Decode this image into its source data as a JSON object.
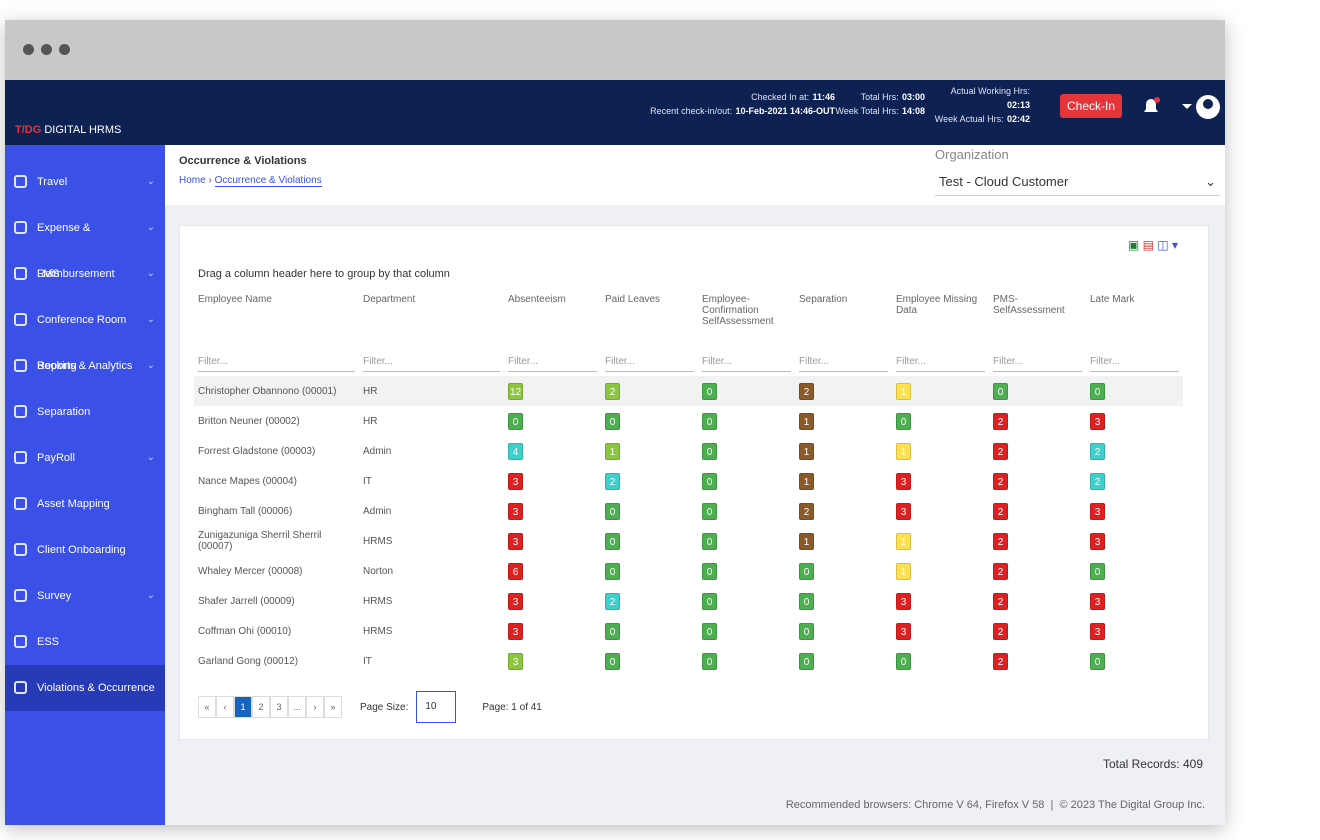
{
  "header": {
    "checked_in_label": "Checked In at:",
    "checked_in_value": "11:46",
    "recent_label": "Recent check-in/out:",
    "recent_value": "10-Feb-2021 14:46-OUT",
    "total_hrs_label": "Total Hrs:",
    "total_hrs_value": "03:00",
    "week_total_label": "Week Total Hrs:",
    "week_total_value": "14:08",
    "actual_working_label": "Actual Working Hrs:",
    "actual_working_value": "02:13",
    "week_actual_label": "Week Actual Hrs:",
    "week_actual_value": "02:42",
    "checkin_button": "Check-In"
  },
  "brand": {
    "logo": "T/DG",
    "name": "DIGITAL HRMS"
  },
  "organization": {
    "label": "Organization",
    "value": "Test - Cloud Customer"
  },
  "sidebar": {
    "items": [
      "Travel",
      "Expense & Reimbursement",
      "LMS",
      "Conference Room Booking",
      "Reports & Analytics",
      "Separation",
      "PayRoll",
      "Asset Mapping",
      "Client Onboarding",
      "Survey",
      "ESS",
      "Violations & Occurrence"
    ]
  },
  "page": {
    "title": "Occurrence & Violations",
    "breadcrumb": [
      "Home",
      "Occurrence & Violations"
    ]
  },
  "grid": {
    "group_hint": "Drag a column header here to group by that column",
    "columns": [
      "Employee Name",
      "Department",
      "Absenteeism",
      "Paid Leaves",
      "Employee-Confirmation SelfAssessment",
      "Separation",
      "Employee Missing Data",
      "PMS-SelfAssessment",
      "Late Mark"
    ],
    "filter_placeholder": "Filter...",
    "rows": [
      {
        "name": "Christopher Obannono (00001)",
        "department": "HR",
        "counts": [
          "12",
          "2",
          "0",
          "2",
          "1",
          "0",
          "0"
        ],
        "colors": [
          "#8cc63f",
          "#8cc63f",
          "#4caf50",
          "#8b5a2b",
          "#ffe14d",
          "#4caf50",
          "#4caf50"
        ]
      },
      {
        "name": "Britton Neuner (00002)",
        "department": "HR",
        "counts": [
          "0",
          "0",
          "0",
          "1",
          "0",
          "2",
          "3"
        ],
        "colors": [
          "#4caf50",
          "#4caf50",
          "#4caf50",
          "#8b5a2b",
          "#4caf50",
          "#e02020",
          "#e02020"
        ]
      },
      {
        "name": "Forrest Gladstone (00003)",
        "department": "Admin",
        "counts": [
          "4",
          "1",
          "0",
          "1",
          "1",
          "2",
          "2"
        ],
        "colors": [
          "#3ed1cc",
          "#8cc63f",
          "#4caf50",
          "#8b5a2b",
          "#ffe14d",
          "#e02020",
          "#3ed1cc"
        ]
      },
      {
        "name": "Nance Mapes (00004)",
        "department": "IT",
        "counts": [
          "3",
          "2",
          "0",
          "1",
          "3",
          "2",
          "2"
        ],
        "colors": [
          "#e02020",
          "#3ed1cc",
          "#4caf50",
          "#8b5a2b",
          "#e02020",
          "#e02020",
          "#3ed1cc"
        ]
      },
      {
        "name": "Bingham Tall (00006)",
        "department": "Admin",
        "counts": [
          "3",
          "0",
          "0",
          "2",
          "3",
          "2",
          "3"
        ],
        "colors": [
          "#e02020",
          "#4caf50",
          "#4caf50",
          "#8b5a2b",
          "#e02020",
          "#e02020",
          "#e02020"
        ]
      },
      {
        "name": "Zunigazuniga Sherril Sherril (00007)",
        "department": "HRMS",
        "counts": [
          "3",
          "0",
          "0",
          "1",
          "1",
          "2",
          "3"
        ],
        "colors": [
          "#e02020",
          "#4caf50",
          "#4caf50",
          "#8b5a2b",
          "#ffe14d",
          "#e02020",
          "#e02020"
        ]
      },
      {
        "name": "Whaley Mercer (00008)",
        "department": "Norton",
        "counts": [
          "6",
          "0",
          "0",
          "0",
          "1",
          "2",
          "0"
        ],
        "colors": [
          "#e02020",
          "#4caf50",
          "#4caf50",
          "#4caf50",
          "#ffe14d",
          "#e02020",
          "#4caf50"
        ]
      },
      {
        "name": "Shafer Jarrell (00009)",
        "department": "HRMS",
        "counts": [
          "3",
          "2",
          "0",
          "0",
          "3",
          "2",
          "3"
        ],
        "colors": [
          "#e02020",
          "#3ed1cc",
          "#4caf50",
          "#4caf50",
          "#e02020",
          "#e02020",
          "#e02020"
        ]
      },
      {
        "name": "Coffman Ohi (00010)",
        "department": "HRMS",
        "counts": [
          "3",
          "0",
          "0",
          "0",
          "3",
          "2",
          "3"
        ],
        "colors": [
          "#e02020",
          "#4caf50",
          "#4caf50",
          "#4caf50",
          "#e02020",
          "#e02020",
          "#e02020"
        ]
      },
      {
        "name": "Garland Gong (00012)",
        "department": "IT",
        "counts": [
          "3",
          "0",
          "0",
          "0",
          "0",
          "2",
          "0"
        ],
        "colors": [
          "#8cc63f",
          "#4caf50",
          "#4caf50",
          "#4caf50",
          "#4caf50",
          "#e02020",
          "#4caf50"
        ]
      }
    ]
  },
  "pager": {
    "buttons": [
      "«",
      "‹",
      "1",
      "2",
      "3",
      "...",
      "›",
      "»"
    ],
    "page_size_label": "Page Size:",
    "page_size": "10",
    "page_info": "Page: 1 of 41",
    "total_records": "Total Records: 409"
  },
  "footer": {
    "browsers": "Recommended browsers: Chrome V 64, Firefox V 58",
    "copyright": "© 2023 The Digital Group Inc."
  }
}
